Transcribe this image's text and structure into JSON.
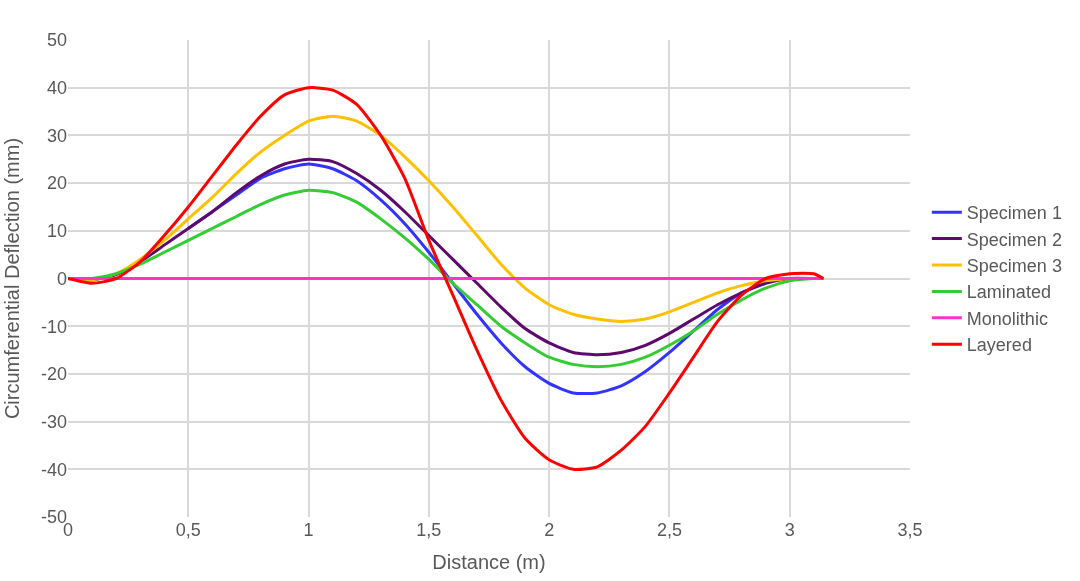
{
  "chart_data": {
    "type": "line",
    "xlabel": "Distance (m)",
    "ylabel": "Circumferential Deflection (mm)",
    "x": [
      0,
      0.1,
      0.2,
      0.3,
      0.4,
      0.5,
      0.6,
      0.7,
      0.8,
      0.9,
      1.0,
      1.1,
      1.2,
      1.3,
      1.4,
      1.5,
      1.6,
      1.7,
      1.8,
      1.9,
      2.0,
      2.1,
      2.2,
      2.3,
      2.4,
      2.5,
      2.6,
      2.7,
      2.8,
      2.9,
      3.0,
      3.1,
      3.14
    ],
    "series": [
      {
        "name": "Specimen 1",
        "color": "#3333ff",
        "values": [
          null,
          null,
          null,
          null,
          null,
          10.5,
          14,
          17.5,
          21,
          23,
          24,
          23,
          20.5,
          16.5,
          11.5,
          5.5,
          -1,
          -7.5,
          -13.5,
          -18.5,
          -22,
          -24,
          -24,
          -22.5,
          -19.5,
          -15.5,
          -11,
          -6.5,
          -3,
          -1,
          null,
          null,
          null
        ]
      },
      {
        "name": "Specimen 2",
        "color": "#5c0a6b",
        "values": [
          0,
          -0.3,
          0.8,
          3.5,
          7,
          10.5,
          14,
          18,
          21.5,
          24,
          25,
          24.5,
          22,
          18.5,
          14,
          9,
          4,
          -1,
          -6,
          -10.5,
          -13.5,
          -15.5,
          -16,
          -15.5,
          -14,
          -11.5,
          -8.5,
          -5.5,
          -3,
          -1,
          0,
          0,
          0
        ]
      },
      {
        "name": "Specimen 3",
        "color": "#ffc000",
        "values": [
          0,
          -0.3,
          1,
          4,
          8,
          12.5,
          17,
          22,
          26.5,
          30,
          33,
          34,
          33,
          30,
          25.5,
          20.5,
          15,
          9,
          3,
          -2,
          -5.5,
          -7.5,
          -8.5,
          -9,
          -8.5,
          -7,
          -5,
          -3,
          -1.5,
          -0.5,
          0,
          0,
          0
        ]
      },
      {
        "name": "Laminated",
        "color": "#33cc33",
        "values": [
          0,
          0,
          1,
          3,
          5.5,
          8,
          10.5,
          13,
          15.5,
          17.5,
          18.5,
          18,
          16,
          12.5,
          8.5,
          4,
          -1,
          -5.5,
          -10,
          -13.5,
          -16.5,
          -18,
          -18.5,
          -18,
          -16.5,
          -14,
          -11,
          -7.5,
          -4.5,
          -2,
          -0.5,
          0,
          0
        ]
      },
      {
        "name": "Monolithic",
        "color": "#ff33cc",
        "values": [
          0,
          0,
          0,
          0,
          0,
          0,
          0,
          0,
          0,
          0,
          0,
          0,
          0,
          0,
          0,
          0,
          0,
          0,
          0,
          0,
          0,
          0,
          0,
          0,
          0,
          0,
          0,
          0,
          0,
          0,
          0,
          0,
          0
        ]
      },
      {
        "name": "Layered",
        "color": "#ff0000",
        "values": [
          0,
          -1,
          0,
          3.5,
          9,
          15,
          21.5,
          28,
          34,
          38.5,
          40,
          39.5,
          36.5,
          30,
          21,
          8,
          -3.5,
          -15,
          -25.5,
          -33.5,
          -38,
          -40,
          -39.5,
          -36,
          -31,
          -24,
          -16.5,
          -9,
          -3.5,
          0,
          1,
          1,
          0
        ]
      }
    ],
    "xlim": [
      0,
      3.5
    ],
    "xticks": [
      0,
      {
        "value": 0.5,
        "label": "0,5"
      },
      1,
      {
        "value": 1.5,
        "label": "1,5"
      },
      2,
      {
        "value": 2.5,
        "label": "2,5"
      },
      3,
      {
        "value": 3.5,
        "label": "3,5"
      }
    ],
    "ylim": [
      -50,
      50
    ],
    "yticks": [
      -50,
      -40,
      -30,
      -20,
      -10,
      0,
      10,
      20,
      30,
      40,
      50
    ],
    "grid": true,
    "legend": "right",
    "marker": "none",
    "line_style": "solid"
  }
}
